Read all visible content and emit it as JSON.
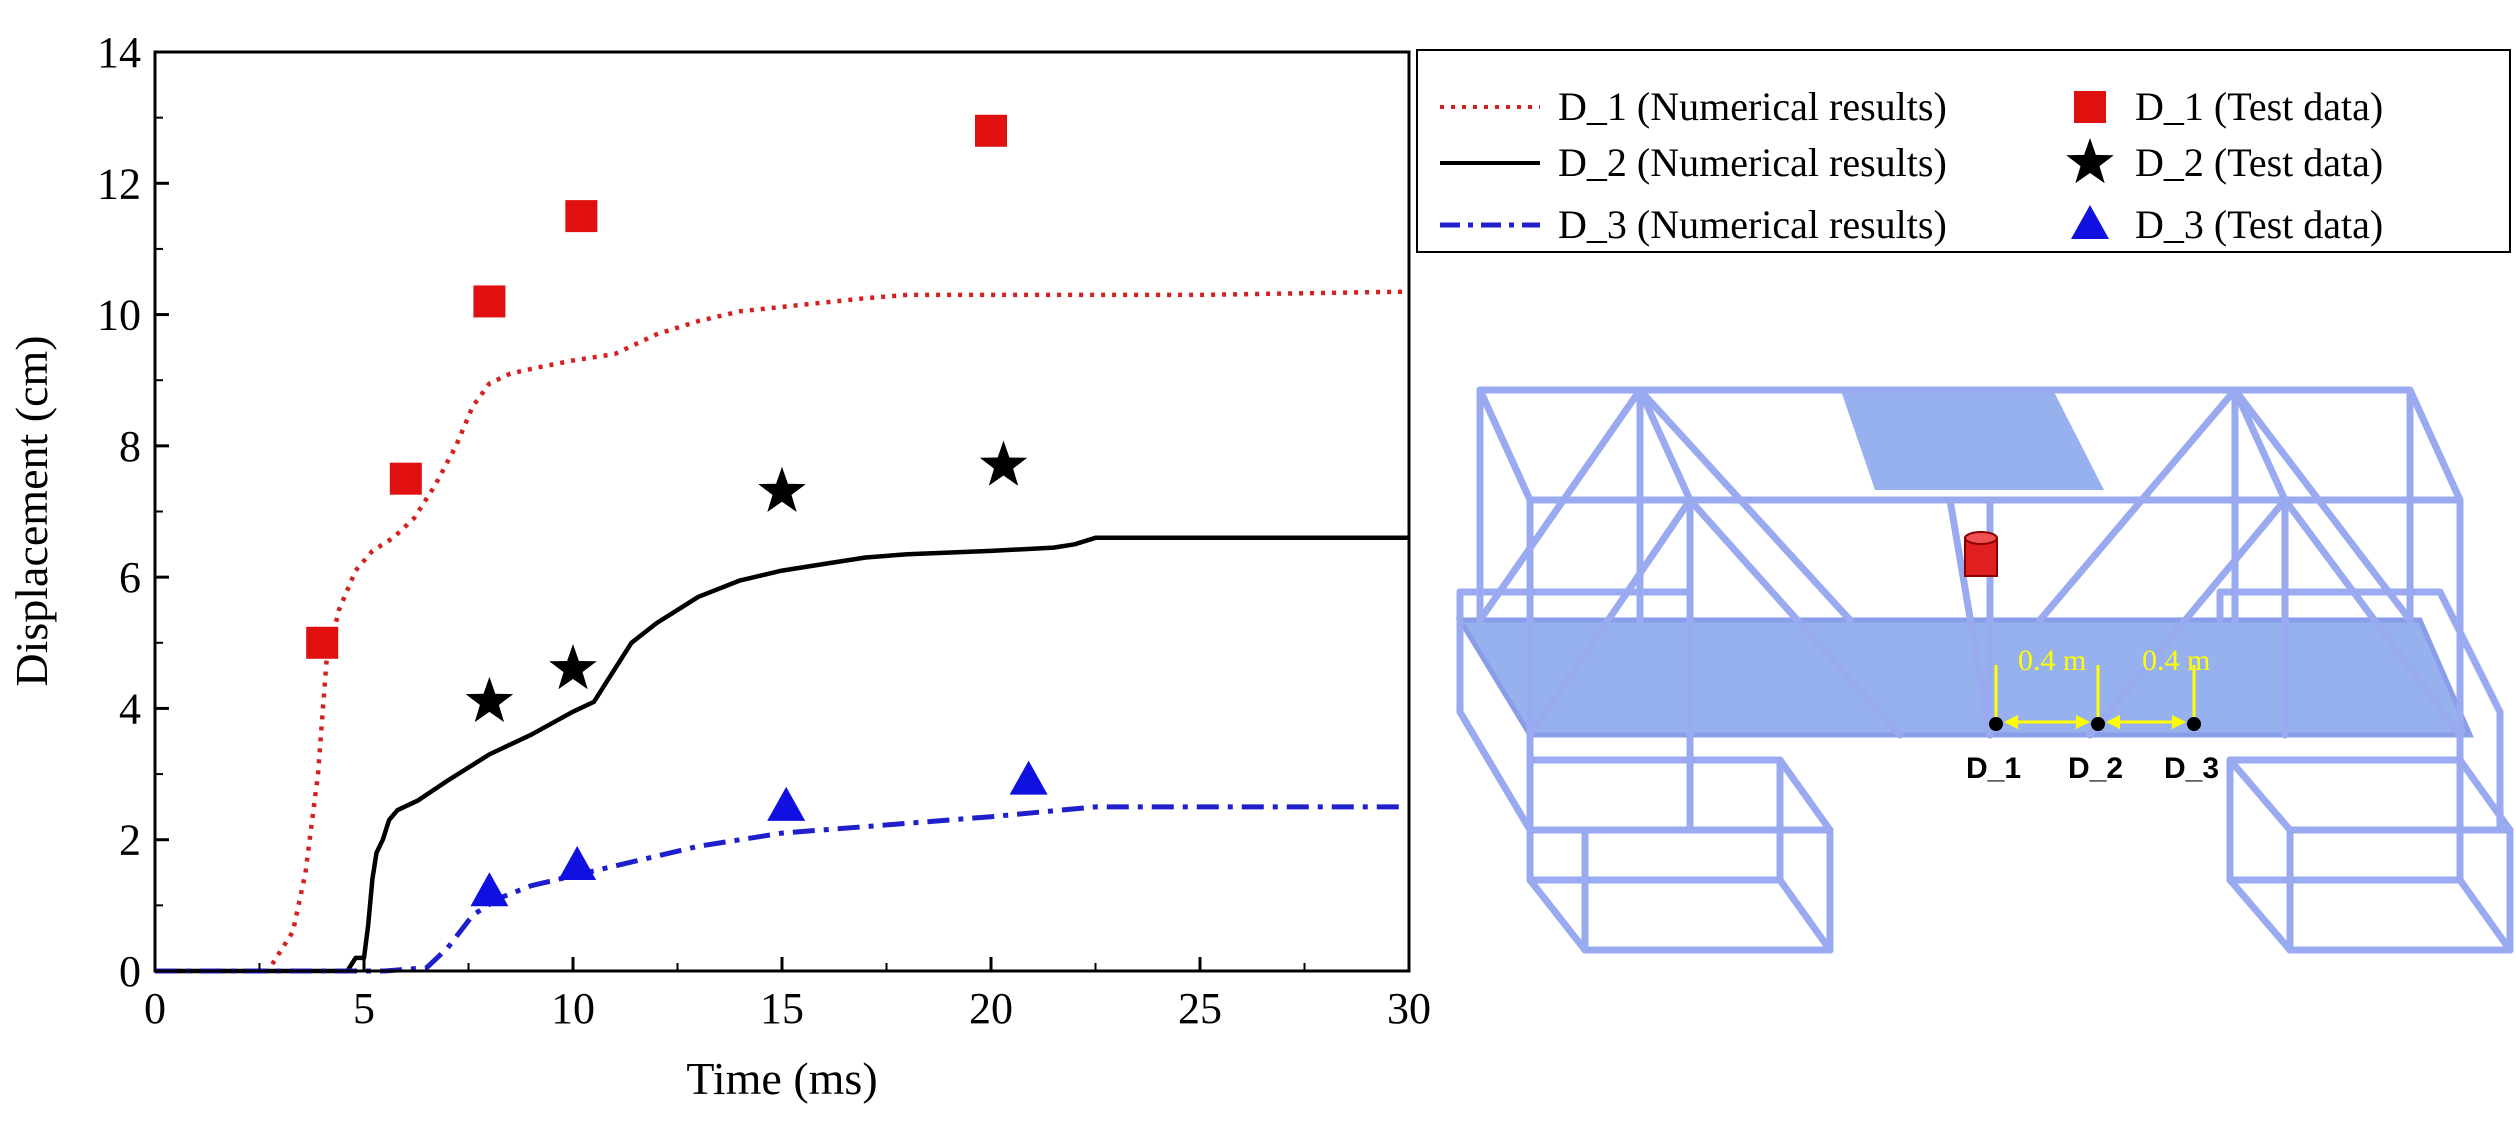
{
  "chart_data": {
    "type": "line",
    "title": "",
    "xlabel": "Time (ms)",
    "ylabel": "Displacement (cm)",
    "xlim": [
      0,
      30
    ],
    "ylim": [
      0,
      14
    ],
    "xticks": [
      0,
      5,
      10,
      15,
      20,
      25,
      30
    ],
    "yticks": [
      0,
      2,
      4,
      6,
      8,
      10,
      12,
      14
    ],
    "grid": false,
    "legend_position": "top-right (outside plot)",
    "series": [
      {
        "name": "D_1 (Numerical results)",
        "kind": "line",
        "style": "dotted",
        "color": "#d62020",
        "x": [
          0,
          2.7,
          3.0,
          3.3,
          3.6,
          3.9,
          4.1,
          4.4,
          4.8,
          5.2,
          5.7,
          6.2,
          6.7,
          7.2,
          7.6,
          8.0,
          8.5,
          9.2,
          10.0,
          11.0,
          12.0,
          13.0,
          14.0,
          15.5,
          17.0,
          18.0,
          20.0,
          25.0,
          30.0
        ],
        "y": [
          0,
          0,
          0.3,
          0.6,
          1.5,
          3.0,
          4.7,
          5.5,
          6.1,
          6.4,
          6.6,
          6.9,
          7.4,
          8.0,
          8.6,
          8.95,
          9.1,
          9.2,
          9.3,
          9.4,
          9.7,
          9.9,
          10.05,
          10.15,
          10.25,
          10.3,
          10.3,
          10.3,
          10.35
        ]
      },
      {
        "name": "D_2 (Numerical results)",
        "kind": "line",
        "style": "solid",
        "color": "#000000",
        "x": [
          0,
          4.6,
          4.8,
          5.0,
          5.1,
          5.2,
          5.3,
          5.45,
          5.6,
          5.8,
          6.3,
          7.0,
          8.0,
          9.0,
          10.0,
          10.5,
          10.8,
          11.0,
          11.4,
          12.0,
          13.0,
          14.0,
          15.0,
          16.0,
          17.0,
          18.0,
          20.0,
          21.5,
          22.0,
          22.5,
          25.0,
          30.0
        ],
        "y": [
          0,
          0,
          0.2,
          0.2,
          0.7,
          1.4,
          1.8,
          2.0,
          2.3,
          2.45,
          2.6,
          2.9,
          3.3,
          3.6,
          3.95,
          4.1,
          4.4,
          4.6,
          5.0,
          5.3,
          5.7,
          5.95,
          6.1,
          6.2,
          6.3,
          6.35,
          6.4,
          6.45,
          6.5,
          6.6,
          6.6,
          6.6
        ]
      },
      {
        "name": "D_3 (Numerical results)",
        "kind": "line",
        "style": "dash-dot",
        "color": "#1f1fcc",
        "x": [
          0,
          5.5,
          6.5,
          7.0,
          7.6,
          8.2,
          9.0,
          10.0,
          11.0,
          12.0,
          13.0,
          15.0,
          17.0,
          20.0,
          22.5,
          25.0,
          30.0
        ],
        "y": [
          0,
          0,
          0.05,
          0.35,
          0.85,
          1.1,
          1.3,
          1.45,
          1.6,
          1.75,
          1.9,
          2.1,
          2.2,
          2.35,
          2.5,
          2.5,
          2.5
        ]
      },
      {
        "name": "D_1 (Test data)",
        "kind": "marker",
        "marker": "square",
        "color": "#e01010",
        "x": [
          4.0,
          6.0,
          8.0,
          10.2,
          20.0
        ],
        "y": [
          5.0,
          7.5,
          10.2,
          11.5,
          12.8
        ]
      },
      {
        "name": "D_2 (Test data)",
        "kind": "marker",
        "marker": "star",
        "color": "#000000",
        "x": [
          8.0,
          10.0,
          15.0,
          20.3
        ],
        "y": [
          4.1,
          4.6,
          7.3,
          7.7
        ]
      },
      {
        "name": "D_3 (Test data)",
        "kind": "marker",
        "marker": "triangle",
        "color": "#1010e0",
        "x": [
          8.0,
          10.1,
          15.1,
          20.9
        ],
        "y": [
          1.2,
          1.6,
          2.5,
          2.9
        ]
      }
    ]
  },
  "diagram": {
    "distance_label_1": "0.4 m",
    "distance_label_2": "0.4 m",
    "point_labels": [
      "D_1",
      "D_2",
      "D_3"
    ],
    "frame_color": "#9aaaf0",
    "deck_color": "#97b1ee",
    "charge_color": "#e02020",
    "dimension_color": "#ffff00"
  }
}
